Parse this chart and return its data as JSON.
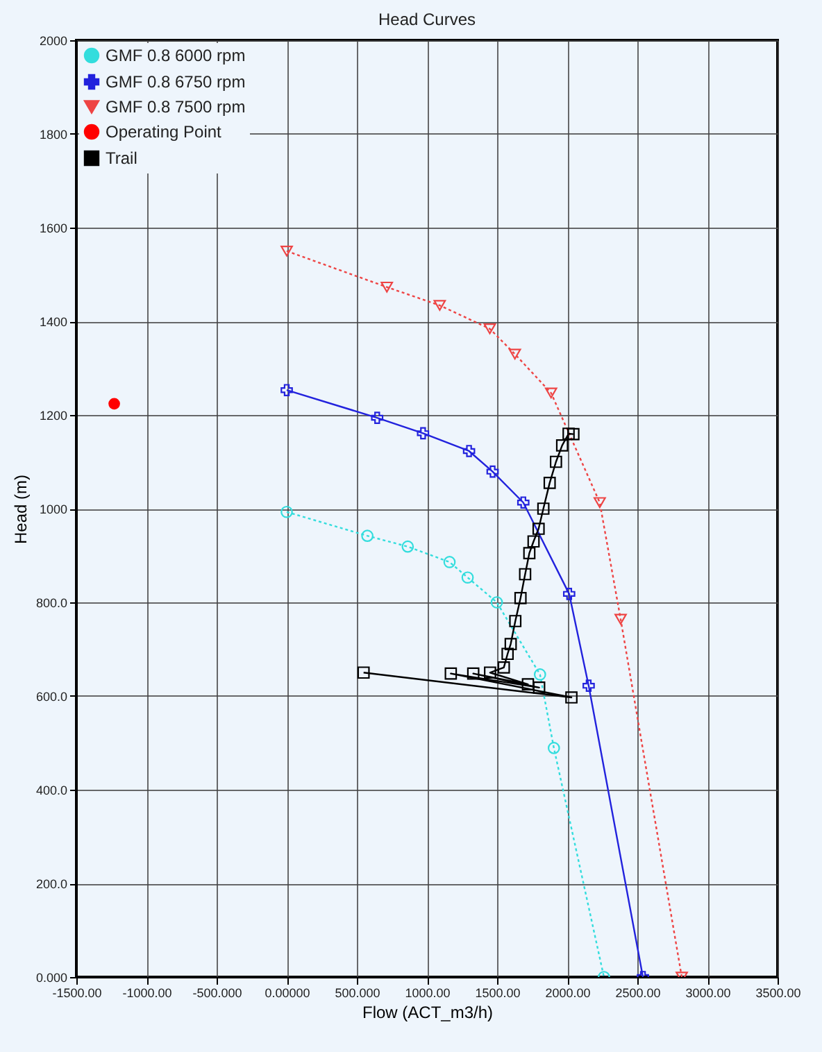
{
  "chart_data": {
    "type": "line",
    "title": "Head Curves",
    "xlabel": "Flow (ACT_m3/h)",
    "ylabel": "Head (m)",
    "xlim": [
      -1500,
      3500
    ],
    "ylim": [
      0,
      2000
    ],
    "xticks": [
      {
        "value": -1500,
        "label": "-1500.00"
      },
      {
        "value": -1000,
        "label": "-1000.00"
      },
      {
        "value": -500,
        "label": "-500.000"
      },
      {
        "value": 0,
        "label": "0.00000"
      },
      {
        "value": 500,
        "label": "500.000"
      },
      {
        "value": 1000,
        "label": "1000.00"
      },
      {
        "value": 1500,
        "label": "1500.00"
      },
      {
        "value": 2000,
        "label": "2000.00"
      },
      {
        "value": 2500,
        "label": "2500.00"
      },
      {
        "value": 3000,
        "label": "3000.00"
      },
      {
        "value": 3500,
        "label": "3500.00"
      }
    ],
    "yticks": [
      {
        "value": 0,
        "label": "0.000"
      },
      {
        "value": 200,
        "label": "200.0"
      },
      {
        "value": 400,
        "label": "400.0"
      },
      {
        "value": 600,
        "label": "600.0"
      },
      {
        "value": 800,
        "label": "800.0"
      },
      1000,
      1200,
      1400,
      1600,
      1800,
      2000
    ],
    "grid": true,
    "legend": "top left",
    "series": [
      {
        "name": "GMF 0.8 6000 rpm",
        "color": "#33dddd",
        "marker": "circle",
        "line_style": "dotted",
        "x": [
          0,
          575,
          863,
          1161,
          1290,
          1498,
          1806,
          1905,
          2262
        ],
        "values": [
          993,
          942,
          919,
          886,
          853,
          800,
          646,
          489,
          0
        ]
      },
      {
        "name": "GMF 0.8 6750 rpm",
        "color": "#2222dd",
        "marker": "cross",
        "line_style": "solid",
        "x": [
          0,
          645,
          972,
          1300,
          1468,
          1687,
          2014,
          2153,
          2540
        ],
        "values": [
          1253,
          1194,
          1161,
          1123,
          1079,
          1013,
          818,
          622,
          0
        ]
      },
      {
        "name": "GMF 0.8 7500 rpm",
        "color": "#ee4444",
        "marker": "triangle",
        "line_style": "dotted",
        "x": [
          0,
          714,
          1091,
          1448,
          1627,
          1885,
          2232,
          2381,
          2817
        ],
        "values": [
          1550,
          1473,
          1434,
          1384,
          1330,
          1247,
          1013,
          764,
          0
        ]
      },
      {
        "name": "Operating Point",
        "color": "#ff0000",
        "type": "scatter",
        "marker": "circle",
        "x": [
          -1230
        ],
        "values": [
          1224
        ]
      },
      {
        "name": "Trail",
        "color": "#000000",
        "marker": "square",
        "line_style": "solid",
        "x": [
          548,
          2030,
          1170,
          1800,
          1330,
          1720,
          1450,
          1548,
          1575,
          1597,
          1630,
          1667,
          1700,
          1730,
          1760,
          1796,
          1830,
          1875,
          1920,
          1964,
          2010,
          2044
        ],
        "values": [
          650,
          597,
          648,
          618,
          648,
          625,
          650,
          661,
          690,
          711,
          760,
          809,
          860,
          905,
          930,
          957,
          1000,
          1055,
          1100,
          1135,
          1160,
          1159
        ]
      }
    ]
  }
}
